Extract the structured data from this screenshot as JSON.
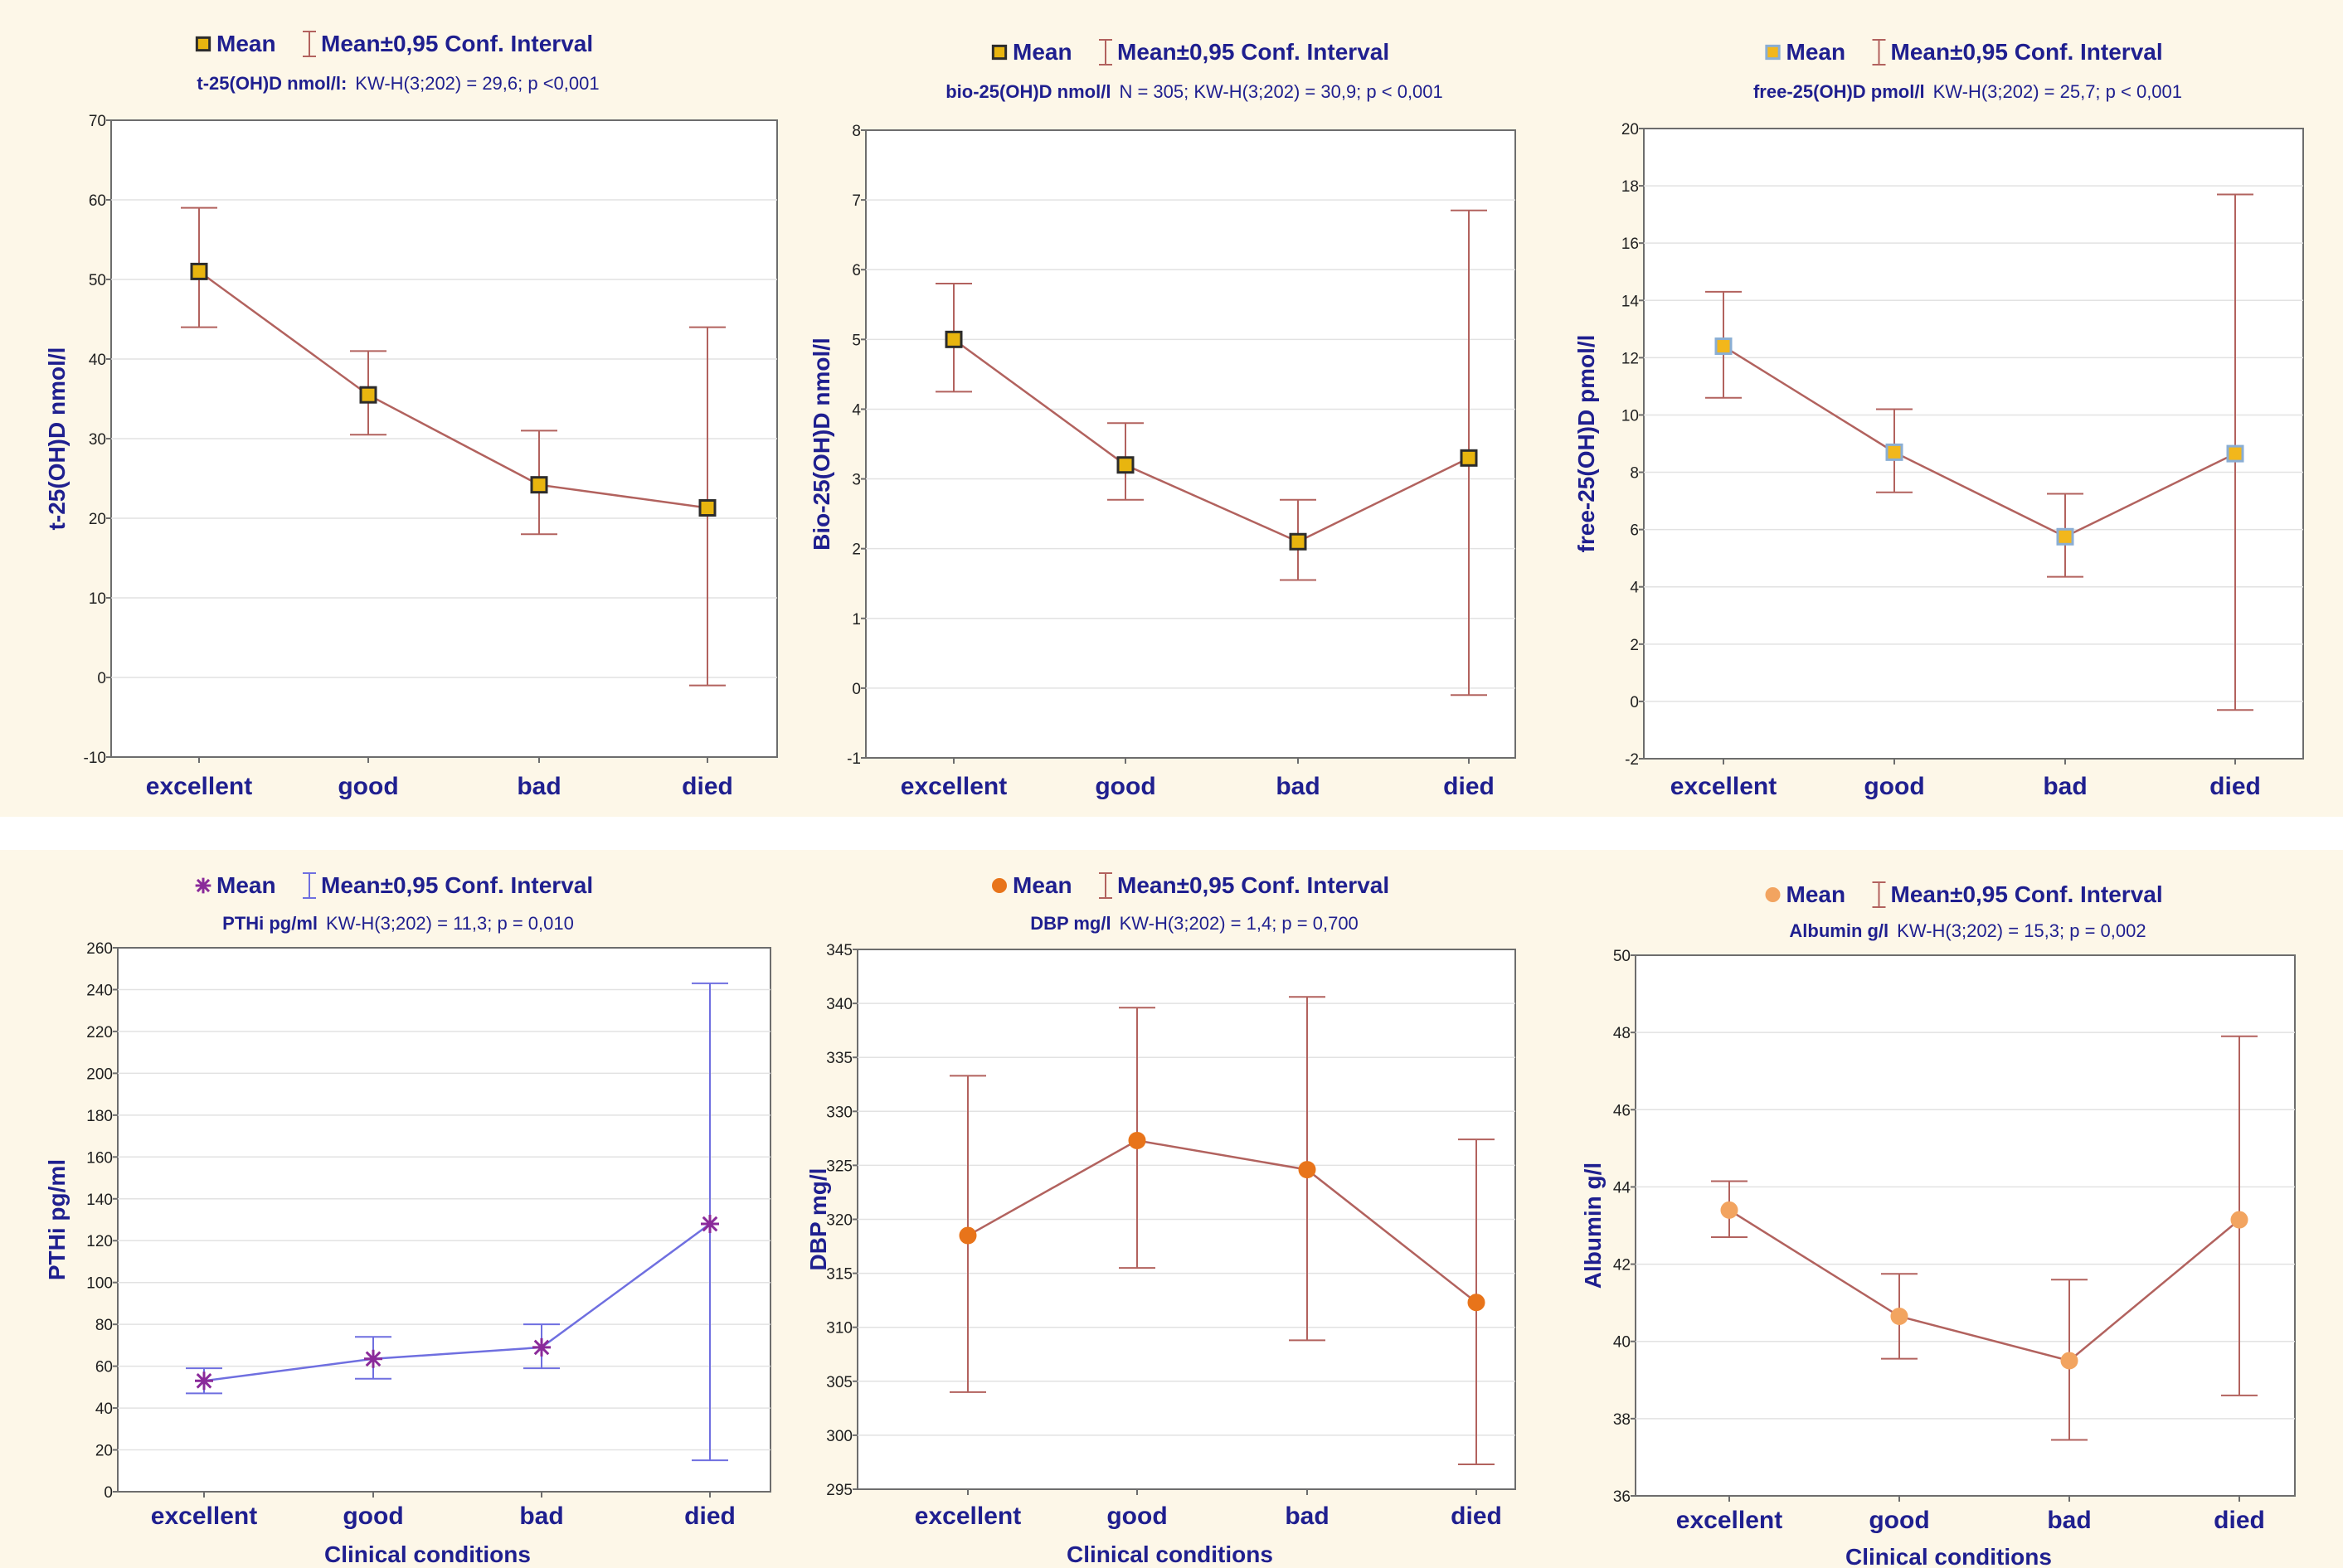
{
  "legend": {
    "mean": "Mean",
    "ci": "Mean±0,95 Conf. Interval"
  },
  "chart_data": [
    {
      "type": "line",
      "variant": "mean-with-error-bars",
      "stat_label": "t-25(OH)D nmol/l:",
      "stat_text": "KW-H(3;202) = 29,6; p <0,001",
      "ylabel": "t-25(OH)D nmol/l",
      "xlabel": "",
      "categories": [
        "excellent",
        "good",
        "bad",
        "died"
      ],
      "series": [
        {
          "mean": [
            51,
            35.5,
            24.2,
            21.3
          ],
          "lower": [
            44,
            30.5,
            18,
            -1
          ],
          "upper": [
            59,
            41,
            31,
            44
          ]
        }
      ],
      "ylim": [
        -10,
        70
      ],
      "yticks": [
        -10,
        0,
        10,
        20,
        30,
        40,
        50,
        60,
        70
      ],
      "grid": true,
      "legend_position": "top-center",
      "marker": "square",
      "line_color": "#b2625e",
      "marker_fill": "#e8b50f",
      "marker_stroke": "#2c2c2c"
    },
    {
      "type": "line",
      "variant": "mean-with-error-bars",
      "stat_label": "bio-25(OH)D nmol/l",
      "stat_text": "N = 305; KW-H(3;202) = 30,9; p < 0,001",
      "ylabel": "Bio-25(OH)D nmol/l",
      "xlabel": "",
      "categories": [
        "excellent",
        "good",
        "bad",
        "died"
      ],
      "series": [
        {
          "mean": [
            5.0,
            3.2,
            2.1,
            3.3
          ],
          "lower": [
            4.25,
            2.7,
            1.55,
            -0.1
          ],
          "upper": [
            5.8,
            3.8,
            2.7,
            6.85
          ]
        }
      ],
      "ylim": [
        -1,
        8
      ],
      "yticks": [
        -1,
        0,
        1,
        2,
        3,
        4,
        5,
        6,
        7,
        8
      ],
      "grid": true,
      "legend_position": "top-center",
      "marker": "square",
      "line_color": "#b2625e",
      "marker_fill": "#e8b50f",
      "marker_stroke": "#2c2c2c"
    },
    {
      "type": "line",
      "variant": "mean-with-error-bars",
      "stat_label": "free-25(OH)D pmol/l",
      "stat_text": "KW-H(3;202) = 25,7; p < 0,001",
      "ylabel": "free-25(OH)D pmol/l",
      "xlabel": "",
      "categories": [
        "excellent",
        "good",
        "bad",
        "died"
      ],
      "series": [
        {
          "mean": [
            12.4,
            8.7,
            5.75,
            8.65
          ],
          "lower": [
            10.6,
            7.3,
            4.35,
            -0.3
          ],
          "upper": [
            14.3,
            10.2,
            7.25,
            17.7
          ]
        }
      ],
      "ylim": [
        -2,
        20
      ],
      "yticks": [
        -2,
        0,
        2,
        4,
        6,
        8,
        10,
        12,
        14,
        16,
        18,
        20
      ],
      "grid": true,
      "legend_position": "top-center",
      "marker": "square",
      "line_color": "#b2625e",
      "marker_fill": "#f2b71b",
      "marker_stroke": "#8aaed4"
    },
    {
      "type": "line",
      "variant": "mean-with-error-bars",
      "stat_label": "PTHi pg/ml",
      "stat_text": "KW-H(3;202) = 11,3; p = 0,010",
      "ylabel": "PTHi pg/ml",
      "xlabel": "Clinical conditions",
      "categories": [
        "excellent",
        "good",
        "bad",
        "died"
      ],
      "series": [
        {
          "mean": [
            53,
            63.5,
            69,
            128
          ],
          "lower": [
            47,
            54,
            59,
            15
          ],
          "upper": [
            59,
            74,
            80,
            243
          ]
        }
      ],
      "ylim": [
        0,
        260
      ],
      "yticks": [
        0,
        20,
        40,
        60,
        80,
        100,
        120,
        140,
        160,
        180,
        200,
        220,
        240,
        260
      ],
      "grid": true,
      "legend_position": "top-center",
      "marker": "star",
      "line_color": "#6f6fe0",
      "marker_fill": "#8a2a9a",
      "marker_stroke": "#8a2a9a"
    },
    {
      "type": "line",
      "variant": "mean-with-error-bars",
      "stat_label": "DBP mg/l",
      "stat_text": "KW-H(3;202) = 1,4; p = 0,700",
      "ylabel": "DBP mg/l",
      "xlabel": "Clinical conditions",
      "categories": [
        "excellent",
        "good",
        "bad",
        "died"
      ],
      "series": [
        {
          "mean": [
            318.5,
            327.3,
            324.6,
            312.3
          ],
          "lower": [
            304,
            315.5,
            308.8,
            297.3
          ],
          "upper": [
            333.3,
            339.6,
            340.6,
            327.4
          ]
        }
      ],
      "ylim": [
        295,
        345
      ],
      "yticks": [
        295,
        300,
        305,
        310,
        315,
        320,
        325,
        330,
        335,
        340,
        345
      ],
      "grid": true,
      "legend_position": "top-center",
      "marker": "circle",
      "line_color": "#b2625e",
      "marker_fill": "#e8741a",
      "marker_stroke": "#e8741a"
    },
    {
      "type": "line",
      "variant": "mean-with-error-bars",
      "stat_label": "Albumin g/l",
      "stat_text": "KW-H(3;202) = 15,3; p = 0,002",
      "ylabel": "Albumin g/l",
      "xlabel": "Clinical conditions",
      "categories": [
        "excellent",
        "good",
        "bad",
        "died"
      ],
      "series": [
        {
          "mean": [
            43.4,
            40.65,
            39.5,
            43.15
          ],
          "lower": [
            42.7,
            39.55,
            37.45,
            38.6
          ],
          "upper": [
            44.15,
            41.75,
            41.6,
            47.9
          ]
        }
      ],
      "ylim": [
        36,
        50
      ],
      "yticks": [
        36,
        38,
        40,
        42,
        44,
        46,
        48,
        50
      ],
      "grid": true,
      "legend_position": "top-center",
      "marker": "circle",
      "line_color": "#b2625e",
      "marker_fill": "#f2a460",
      "marker_stroke": "#f2a460"
    }
  ]
}
